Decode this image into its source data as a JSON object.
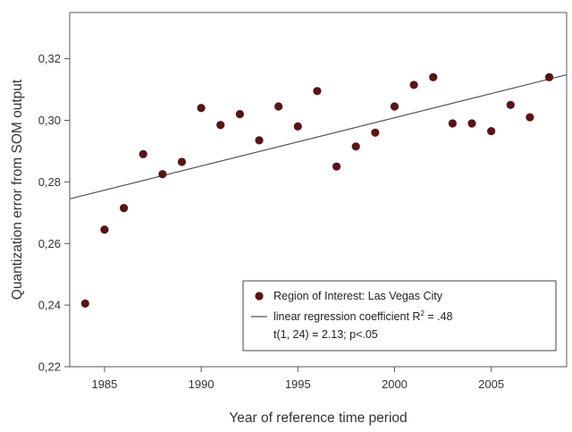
{
  "chart_data": {
    "type": "scatter",
    "xlabel": "Year of reference time period",
    "ylabel": "Quantization error from SOM output",
    "xlim": [
      1983.2,
      2008.9
    ],
    "ylim": [
      0.22,
      0.335
    ],
    "x_ticks": [
      1985,
      1990,
      1995,
      2000,
      2005
    ],
    "x_tick_labels": [
      "1985",
      "1990",
      "1995",
      "2000",
      "2005"
    ],
    "y_ticks": [
      0.22,
      0.24,
      0.26,
      0.28,
      0.3,
      0.32
    ],
    "y_tick_labels": [
      "0,22",
      "0,24",
      "0,26",
      "0,28",
      "0,30",
      "0,32"
    ],
    "grid": false,
    "legend_position": "bottom-right",
    "series": [
      {
        "name": "Region of Interest: Las Vegas City",
        "kind": "points",
        "color": "#5a1414",
        "x": [
          1984,
          1985,
          1986,
          1987,
          1988,
          1989,
          1990,
          1991,
          1992,
          1993,
          1994,
          1995,
          1996,
          1997,
          1998,
          1999,
          2000,
          2001,
          2002,
          2003,
          2004,
          2005,
          2006,
          2007,
          2008
        ],
        "y": [
          0.2405,
          0.2645,
          0.2715,
          0.289,
          0.2825,
          0.2865,
          0.304,
          0.2985,
          0.302,
          0.2935,
          0.3045,
          0.298,
          0.3095,
          0.285,
          0.2915,
          0.296,
          0.3045,
          0.3115,
          0.314,
          0.299,
          0.299,
          0.2965,
          0.305,
          0.301,
          0.314
        ]
      },
      {
        "name": "linear regression coefficient R",
        "kind": "fit-line",
        "color": "#555555",
        "x": [
          1983.2,
          2008.9
        ],
        "y": [
          0.2745,
          0.3148
        ]
      }
    ],
    "legend": {
      "points_label": "Region of Interest: Las Vegas City",
      "line_label_main": "linear regression coefficient R",
      "line_label_sup": "2",
      "line_label_tail": " = .48",
      "stats_label": "t(1, 24) = 2.13; p<.05"
    }
  }
}
